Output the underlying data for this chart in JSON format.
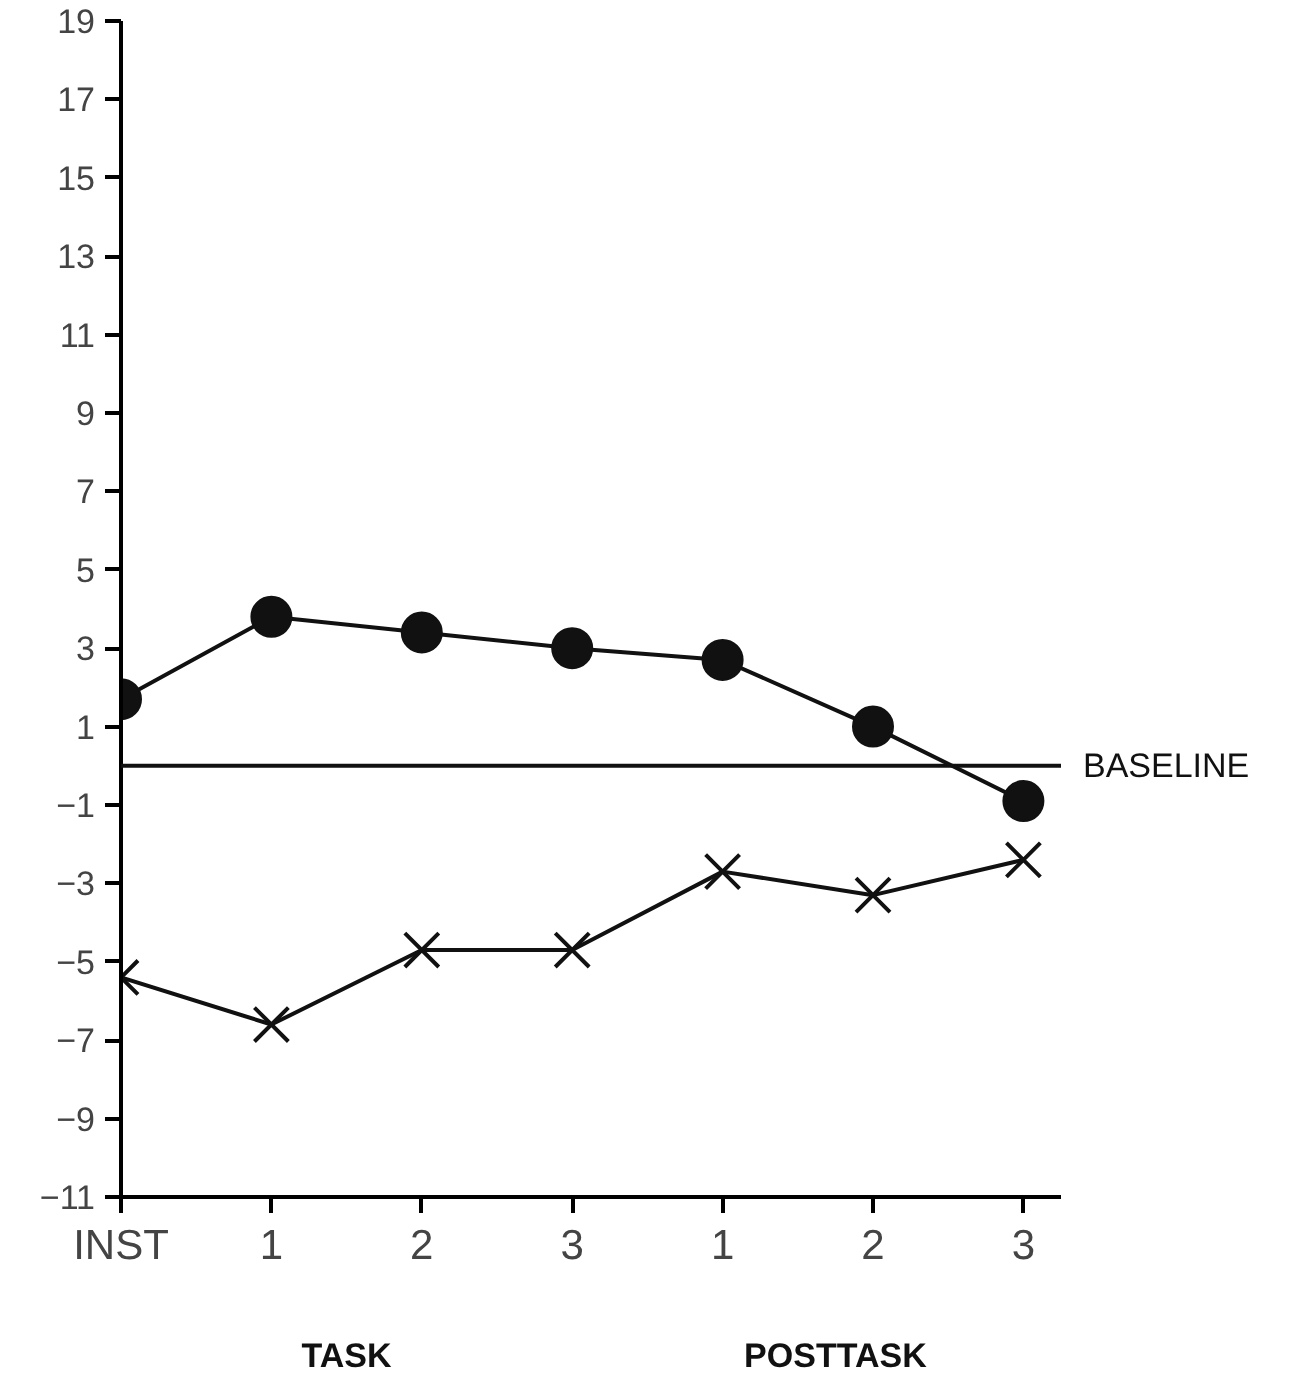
{
  "chart_data": {
    "type": "line",
    "categories": [
      "INST",
      "1",
      "2",
      "3",
      "1",
      "2",
      "3"
    ],
    "series": [
      {
        "color": "#111111",
        "marker": "circle",
        "values": [
          1.7,
          3.8,
          3.4,
          3.0,
          2.7,
          1.0,
          -0.9
        ]
      },
      {
        "color": "#111111",
        "marker": "cross",
        "values": [
          -5.4,
          -6.6,
          -4.7,
          -4.7,
          -2.7,
          -3.3,
          -2.4
        ]
      }
    ],
    "ylim": [
      -11,
      19
    ],
    "yticks": [
      -11,
      -9,
      -7,
      -5,
      -3,
      -1,
      1,
      3,
      5,
      7,
      9,
      11,
      13,
      15,
      17,
      19
    ],
    "ref_lines": [
      {
        "axis": "y",
        "value": 0,
        "label": "BASELINE",
        "color": "#111111"
      }
    ],
    "annotations": [
      "TASK",
      "POSTTASK"
    ],
    "line_style": "solid"
  }
}
